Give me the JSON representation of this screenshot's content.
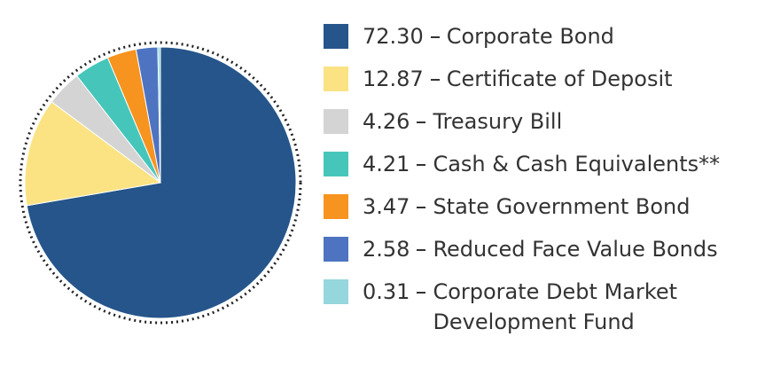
{
  "chart_data": {
    "type": "pie",
    "categories": [
      "Corporate Bond",
      "Certificate of Deposit",
      "Treasury Bill",
      "Cash & Cash Equivalents**",
      "State Government Bond",
      "Reduced Face Value Bonds",
      "Corporate Debt Market Development Fund"
    ],
    "values": [
      72.3,
      12.87,
      4.26,
      4.21,
      3.47,
      2.58,
      0.31
    ],
    "value_labels": [
      "72.30",
      "12.87",
      "4.26",
      "4.21",
      "3.47",
      "2.58",
      "0.31"
    ],
    "colors": [
      "#25558a",
      "#fbe383",
      "#d4d4d4",
      "#46c6ba",
      "#f7931f",
      "#4e74c1",
      "#95d7dd"
    ]
  }
}
